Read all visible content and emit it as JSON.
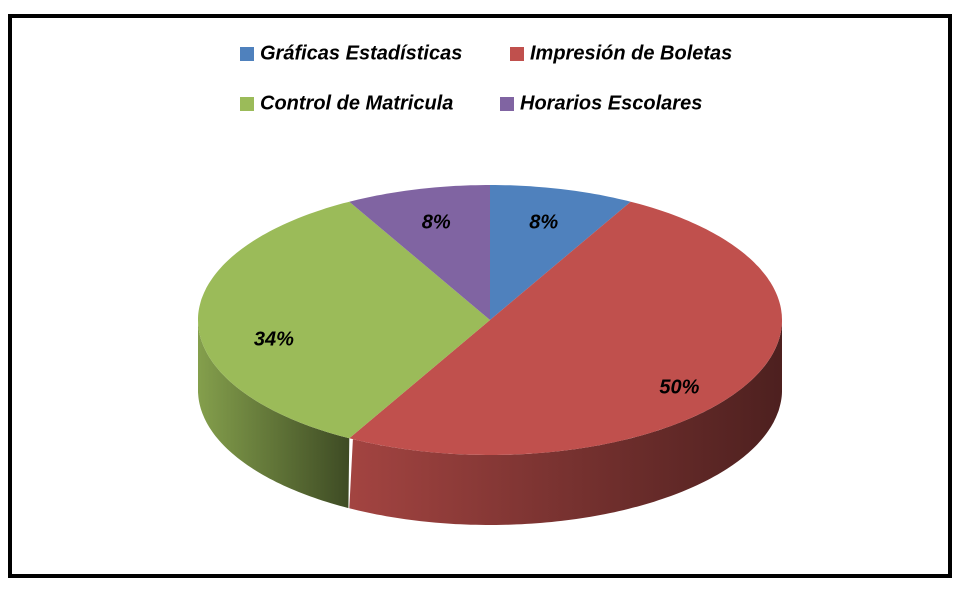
{
  "chart_data": {
    "type": "pie",
    "categories": [
      "Gráficas Estadísticas",
      "Impresión de Boletas",
      "Control de Matricula",
      "Horarios Escolares"
    ],
    "values": [
      8,
      50,
      34,
      8
    ],
    "value_labels": [
      "8%",
      "50%",
      "34%",
      "8%"
    ],
    "colors": [
      "#4f81bd",
      "#c0504d",
      "#9bbb59",
      "#8064a2"
    ],
    "legend": "top"
  }
}
